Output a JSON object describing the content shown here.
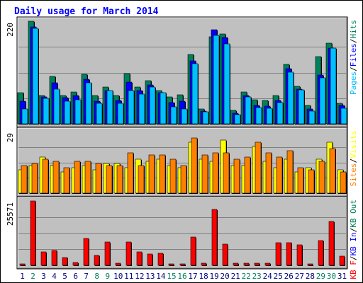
{
  "chart_data": {
    "type": "bar",
    "title": "Daily usage for March 2014",
    "categories": [
      "1",
      "2",
      "3",
      "4",
      "5",
      "6",
      "7",
      "8",
      "9",
      "10",
      "11",
      "12",
      "13",
      "14",
      "15",
      "16",
      "17",
      "18",
      "19",
      "20",
      "21",
      "22",
      "23",
      "24",
      "25",
      "26",
      "27",
      "28",
      "29",
      "30",
      "31"
    ],
    "weekend_days": [
      "2",
      "8",
      "9",
      "15",
      "16",
      "22",
      "23",
      "29",
      "30"
    ],
    "colors": {
      "hits": "#00805c",
      "files": "#0000ff",
      "pages": "#00c0ff",
      "visits": "#ffff00",
      "sites": "#ff8000",
      "kbin": "#0000ff",
      "kbout": "#ff0000",
      "title": "#0000ff",
      "panel": "#c0c0c0",
      "weekday_label": "#000080",
      "weekend_label": "#00805c"
    },
    "panels": [
      {
        "id": "hits-files-pages",
        "ymax_label": "220",
        "ylim": [
          0,
          220
        ],
        "legend": [
          {
            "text": "Pages",
            "color": "#00c0ff"
          },
          {
            "text": "/",
            "color": "#000000"
          },
          {
            "text": "Files",
            "color": "#0000ff"
          },
          {
            "text": "/",
            "color": "#000000"
          },
          {
            "text": "Hits",
            "color": "#00805c"
          }
        ],
        "series": [
          {
            "name": "Hits",
            "color": "#00805c",
            "values": [
              66,
              220,
              61,
              101,
              61,
              68,
              106,
              60,
              79,
              60,
              107,
              79,
              93,
              72,
              57,
              62,
              148,
              32,
              187,
              193,
              29,
              69,
              52,
              50,
              60,
              128,
              80,
              40,
              144,
              173,
              44
            ]
          },
          {
            "name": "Files",
            "color": "#0000ff",
            "values": [
              48,
              208,
              57,
              88,
              56,
              60,
              96,
              48,
              72,
              50,
              90,
              72,
              84,
              66,
              46,
              48,
              135,
              28,
              202,
              185,
              23,
              60,
              40,
              38,
              50,
              119,
              75,
              32,
              104,
              162,
              40
            ]
          },
          {
            "name": "Pages",
            "color": "#00c0ff",
            "values": [
              32,
              205,
              54,
              74,
              48,
              52,
              88,
              44,
              72,
              44,
              72,
              64,
              79,
              66,
              36,
              32,
              129,
              26,
              190,
              172,
              20,
              57,
              35,
              34,
              46,
              110,
              73,
              27,
              99,
              163,
              34
            ]
          }
        ]
      },
      {
        "id": "visits-sites",
        "ymax_label": "29",
        "ylim": [
          0,
          29
        ],
        "legend": [
          {
            "text": "Sites",
            "color": "#ff8000"
          },
          {
            "text": "/",
            "color": "#000000"
          },
          {
            "text": "Visits",
            "color": "#ffff00"
          }
        ],
        "series": [
          {
            "name": "Visits",
            "color": "#ffff00",
            "values": [
              11,
              13,
              17,
              13,
              10,
              12,
              13,
              11,
              14,
              14,
              12,
              16,
              15,
              16,
              13,
              12,
              24,
              16,
              15,
              25,
              13,
              13,
              22,
              15,
              12,
              16,
              10,
              12,
              16,
              24,
              11
            ]
          },
          {
            "name": "Sites",
            "color": "#ff8000",
            "values": [
              13,
              14,
              16,
              15,
              12,
              15,
              15,
              14,
              13,
              13,
              19,
              13,
              18,
              18,
              16,
              13,
              26,
              18,
              19,
              19,
              16,
              17,
              24,
              19,
              17,
              20,
              12,
              11,
              15,
              21,
              10
            ]
          }
        ]
      },
      {
        "id": "kbf-kbin-kbout",
        "ymax_label": "25571",
        "ylim": [
          0,
          25571
        ],
        "legend": [
          {
            "text": "KB F",
            "color": "#ff0000"
          },
          {
            "text": "/",
            "color": "#000000"
          },
          {
            "text": "KB In",
            "color": "#0000ff"
          },
          {
            "text": "/",
            "color": "#000000"
          },
          {
            "text": "KB Out",
            "color": "#00805c"
          }
        ],
        "series": [
          {
            "name": "KB F",
            "color": "#ff0000",
            "values": [
              700,
              25571,
              5300,
              5900,
              3000,
              1200,
              10600,
              3800,
              9400,
              750,
              9300,
              5200,
              4500,
              4900,
              600,
              600,
              11100,
              730,
              22200,
              8300,
              800,
              800,
              900,
              900,
              8900,
              8900,
              8100,
              600,
              9800,
              17400,
              3600
            ]
          }
        ]
      }
    ]
  }
}
